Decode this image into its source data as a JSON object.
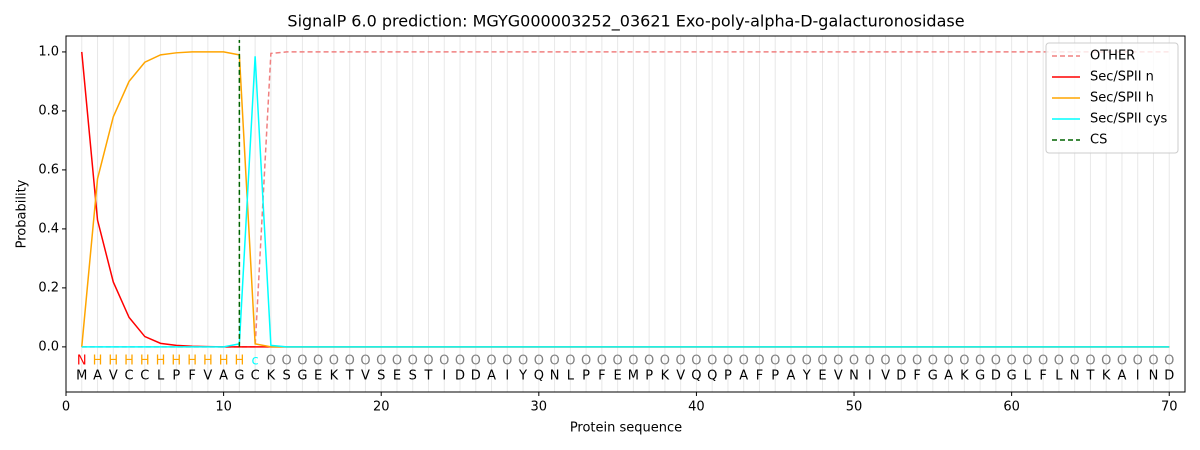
{
  "chart_data": {
    "type": "line",
    "title": "SignalP 6.0 prediction: MGYG000003252_03621 Exo-poly-alpha-D-galacturonosidase",
    "xlabel": "Protein sequence",
    "ylabel": "Probability",
    "xlim": [
      0,
      71
    ],
    "ylim": [
      -0.153,
      1.054
    ],
    "xticks": [
      0,
      10,
      20,
      30,
      40,
      50,
      60,
      70
    ],
    "yticks": [
      {
        "value": 0,
        "label": "0.0"
      },
      {
        "value": 0.2,
        "label": "0.2"
      },
      {
        "value": 0.4,
        "label": "0.4"
      },
      {
        "value": 0.6,
        "label": "0.6"
      },
      {
        "value": 0.8,
        "label": "0.8"
      },
      {
        "value": 1.0,
        "label": "1.0"
      }
    ],
    "x": [
      1,
      2,
      3,
      4,
      5,
      6,
      7,
      8,
      9,
      10,
      11,
      12,
      13,
      14,
      15,
      16,
      17,
      18,
      19,
      20,
      21,
      22,
      23,
      24,
      25,
      26,
      27,
      28,
      29,
      30,
      31,
      32,
      33,
      34,
      35,
      36,
      37,
      38,
      39,
      40,
      41,
      42,
      43,
      44,
      45,
      46,
      47,
      48,
      49,
      50,
      51,
      52,
      53,
      54,
      55,
      56,
      57,
      58,
      59,
      60,
      61,
      62,
      63,
      64,
      65,
      66,
      67,
      68,
      69,
      70
    ],
    "sequence": [
      "M",
      "A",
      "V",
      "C",
      "C",
      "L",
      "P",
      "F",
      "V",
      "A",
      "G",
      "C",
      "K",
      "S",
      "G",
      "E",
      "K",
      "T",
      "V",
      "S",
      "E",
      "S",
      "T",
      "I",
      "D",
      "D",
      "A",
      "I",
      "Y",
      "Q",
      "N",
      "L",
      "P",
      "F",
      "E",
      "M",
      "P",
      "K",
      "V",
      "Q",
      "Q",
      "P",
      "A",
      "F",
      "P",
      "A",
      "Y",
      "E",
      "V",
      "N",
      "I",
      "V",
      "D",
      "F",
      "G",
      "A",
      "K",
      "G",
      "D",
      "G",
      "L",
      "F",
      "L",
      "N",
      "T",
      "K",
      "A",
      "I",
      "N",
      "D"
    ],
    "labels": [
      "N",
      "H",
      "H",
      "H",
      "H",
      "H",
      "H",
      "H",
      "H",
      "H",
      "H",
      "c",
      "O",
      "O",
      "O",
      "O",
      "O",
      "O",
      "O",
      "O",
      "O",
      "O",
      "O",
      "O",
      "O",
      "O",
      "O",
      "O",
      "O",
      "O",
      "O",
      "O",
      "O",
      "O",
      "O",
      "O",
      "O",
      "O",
      "O",
      "O",
      "O",
      "O",
      "O",
      "O",
      "O",
      "O",
      "O",
      "O",
      "O",
      "O",
      "O",
      "O",
      "O",
      "O",
      "O",
      "O",
      "O",
      "O",
      "O",
      "O",
      "O",
      "O",
      "O",
      "O",
      "O",
      "O",
      "O",
      "O",
      "O",
      "O"
    ],
    "label_colors": {
      "N": "#ff0000",
      "H": "#ffa500",
      "c": "#00ffff",
      "O": "#808080"
    },
    "series": [
      {
        "name": "OTHER",
        "color": "#f08080",
        "dashed": true,
        "values": [
          0,
          0,
          0,
          0,
          0,
          0,
          0,
          0,
          0,
          0,
          0,
          0,
          0.995,
          1,
          1,
          1,
          1,
          1,
          1,
          1,
          1,
          1,
          1,
          1,
          1,
          1,
          1,
          1,
          1,
          1,
          1,
          1,
          1,
          1,
          1,
          1,
          1,
          1,
          1,
          1,
          1,
          1,
          1,
          1,
          1,
          1,
          1,
          1,
          1,
          1,
          1,
          1,
          1,
          1,
          1,
          1,
          1,
          1,
          1,
          1,
          1,
          1,
          1,
          1,
          1,
          1,
          1,
          1,
          1,
          1
        ]
      },
      {
        "name": "Sec/SPII n",
        "color": "#ff0000",
        "values": [
          1,
          0.43,
          0.22,
          0.1,
          0.035,
          0.012,
          0.005,
          0.002,
          0.001,
          0,
          0,
          0,
          0,
          0,
          0,
          0,
          0,
          0,
          0,
          0,
          0,
          0,
          0,
          0,
          0,
          0,
          0,
          0,
          0,
          0,
          0,
          0,
          0,
          0,
          0,
          0,
          0,
          0,
          0,
          0,
          0,
          0,
          0,
          0,
          0,
          0,
          0,
          0,
          0,
          0,
          0,
          0,
          0,
          0,
          0,
          0,
          0,
          0,
          0,
          0,
          0,
          0,
          0,
          0,
          0,
          0,
          0,
          0,
          0,
          0
        ]
      },
      {
        "name": "Sec/SPII h",
        "color": "#ffa500",
        "values": [
          0,
          0.57,
          0.78,
          0.9,
          0.965,
          0.99,
          0.997,
          1,
          1,
          1,
          0.99,
          0.01,
          0,
          0,
          0,
          0,
          0,
          0,
          0,
          0,
          0,
          0,
          0,
          0,
          0,
          0,
          0,
          0,
          0,
          0,
          0,
          0,
          0,
          0,
          0,
          0,
          0,
          0,
          0,
          0,
          0,
          0,
          0,
          0,
          0,
          0,
          0,
          0,
          0,
          0,
          0,
          0,
          0,
          0,
          0,
          0,
          0,
          0,
          0,
          0,
          0,
          0,
          0,
          0,
          0,
          0,
          0,
          0,
          0,
          0
        ]
      },
      {
        "name": "Sec/SPII cys",
        "color": "#00ffff",
        "values": [
          0,
          0,
          0,
          0,
          0,
          0,
          0,
          0,
          0,
          0,
          0.01,
          0.985,
          0.005,
          0,
          0,
          0,
          0,
          0,
          0,
          0,
          0,
          0,
          0,
          0,
          0,
          0,
          0,
          0,
          0,
          0,
          0,
          0,
          0,
          0,
          0,
          0,
          0,
          0,
          0,
          0,
          0,
          0,
          0,
          0,
          0,
          0,
          0,
          0,
          0,
          0,
          0,
          0,
          0,
          0,
          0,
          0,
          0,
          0,
          0,
          0,
          0,
          0,
          0,
          0,
          0,
          0,
          0,
          0,
          0,
          0
        ]
      }
    ],
    "cs": {
      "name": "CS",
      "color": "#006400",
      "x": 11
    }
  }
}
